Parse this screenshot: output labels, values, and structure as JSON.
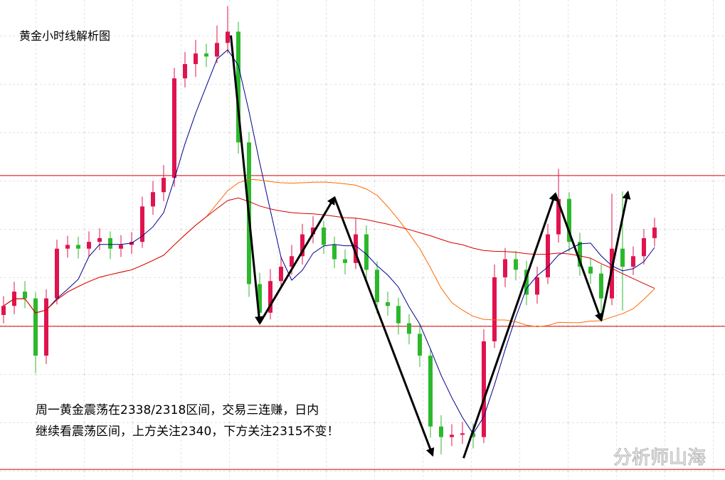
{
  "chart_data": {
    "type": "candlestick",
    "title": "黄金小时线解析图",
    "annotations": [
      "周一黄金震荡在2338/2318区间，交易三连赚，日内",
      "继续看震荡区间，上方关注2340，下方关注2315不变！"
    ],
    "watermark": "分析师山海",
    "ylim": [
      2297.6,
      2361.3
    ],
    "up_color": "#e0134f",
    "down_color": "#2cb82c",
    "levels": [
      2338,
      2318,
      2299
    ],
    "level_color": "#d40000",
    "ma_periods": [
      5,
      20,
      40
    ],
    "ma_colors": [
      "#00008b",
      "#ff6a00",
      "#d40000"
    ],
    "arrows": [
      [
        [
          21.3,
          2356.6
        ],
        [
          24,
          2318.4
        ]
      ],
      [
        [
          24,
          2318.4
        ],
        [
          31,
          2335.1
        ]
      ],
      [
        [
          31,
          2335.1
        ],
        [
          40.2,
          2300.9
        ]
      ],
      [
        [
          43.1,
          2300.5
        ],
        [
          51.7,
          2335.6
        ]
      ],
      [
        [
          51.7,
          2335.6
        ],
        [
          56,
          2318.8
        ]
      ],
      [
        [
          56,
          2318.8
        ],
        [
          58.5,
          2335.8
        ]
      ]
    ],
    "ohlc": [
      [
        2319.5,
        2322.0,
        2318.4,
        2320.7
      ],
      [
        2320.7,
        2323.9,
        2319.6,
        2322.6
      ],
      [
        2322.6,
        2324.0,
        2320.4,
        2321.7
      ],
      [
        2321.7,
        2322.5,
        2311.8,
        2314.1
      ],
      [
        2314.1,
        2322.9,
        2313.0,
        2321.7
      ],
      [
        2321.7,
        2329.5,
        2320.9,
        2328.3
      ],
      [
        2328.3,
        2330.0,
        2327.1,
        2328.8
      ],
      [
        2328.8,
        2329.9,
        2327.0,
        2328.3
      ],
      [
        2328.3,
        2330.6,
        2327.2,
        2329.2
      ],
      [
        2329.2,
        2331.0,
        2328.1,
        2329.7
      ],
      [
        2329.7,
        2330.6,
        2326.9,
        2328.3
      ],
      [
        2328.3,
        2330.1,
        2327.2,
        2328.8
      ],
      [
        2328.8,
        2330.5,
        2327.6,
        2329.2
      ],
      [
        2329.2,
        2335.2,
        2328.4,
        2333.9
      ],
      [
        2333.9,
        2337.3,
        2332.8,
        2335.8
      ],
      [
        2335.8,
        2339.4,
        2334.6,
        2337.7
      ],
      [
        2337.7,
        2352.3,
        2336.5,
        2350.9
      ],
      [
        2350.9,
        2354.4,
        2349.7,
        2352.8
      ],
      [
        2352.8,
        2356.0,
        2351.1,
        2354.2
      ],
      [
        2354.2,
        2355.5,
        2352.4,
        2353.8
      ],
      [
        2353.8,
        2357.9,
        2352.9,
        2355.6
      ],
      [
        2355.6,
        2360.5,
        2354.2,
        2357.1
      ],
      [
        2357.1,
        2358.4,
        2340.9,
        2342.4
      ],
      [
        2342.4,
        2343.8,
        2321.9,
        2323.6
      ],
      [
        2323.6,
        2325.1,
        2318.4,
        2319.8
      ],
      [
        2319.8,
        2325.6,
        2318.9,
        2324.0
      ],
      [
        2324.0,
        2327.3,
        2323.1,
        2325.9
      ],
      [
        2325.9,
        2328.8,
        2324.8,
        2327.3
      ],
      [
        2327.3,
        2331.6,
        2326.2,
        2330.2
      ],
      [
        2330.2,
        2332.6,
        2329.0,
        2331.1
      ],
      [
        2331.1,
        2332.0,
        2327.6,
        2328.8
      ],
      [
        2328.8,
        2329.9,
        2325.7,
        2326.9
      ],
      [
        2326.9,
        2328.2,
        2324.9,
        2326.4
      ],
      [
        2326.4,
        2332.3,
        2325.6,
        2330.2
      ],
      [
        2330.2,
        2331.4,
        2324.1,
        2325.5
      ],
      [
        2325.5,
        2326.6,
        2319.7,
        2321.2
      ],
      [
        2321.2,
        2322.6,
        2319.4,
        2320.7
      ],
      [
        2320.7,
        2321.8,
        2316.9,
        2318.4
      ],
      [
        2318.4,
        2319.6,
        2315.6,
        2317.0
      ],
      [
        2317.0,
        2318.3,
        2312.6,
        2314.1
      ],
      [
        2314.1,
        2315.0,
        2303.2,
        2304.7
      ],
      [
        2304.7,
        2306.2,
        2301.0,
        2303.3
      ],
      [
        2303.3,
        2305.0,
        2302.1,
        2303.6
      ],
      [
        2303.6,
        2305.3,
        2302.4,
        2303.8
      ],
      [
        2303.8,
        2305.1,
        2301.8,
        2303.3
      ],
      [
        2303.3,
        2317.6,
        2302.5,
        2316.0
      ],
      [
        2316.0,
        2326.2,
        2315.1,
        2324.5
      ],
      [
        2324.5,
        2328.4,
        2323.2,
        2326.9
      ],
      [
        2326.9,
        2328.0,
        2324.1,
        2325.5
      ],
      [
        2325.5,
        2326.7,
        2320.8,
        2322.2
      ],
      [
        2322.2,
        2325.9,
        2321.0,
        2324.5
      ],
      [
        2324.5,
        2331.6,
        2323.6,
        2330.2
      ],
      [
        2330.2,
        2338.9,
        2329.1,
        2334.9
      ],
      [
        2334.9,
        2335.8,
        2327.9,
        2329.2
      ],
      [
        2329.2,
        2330.4,
        2324.7,
        2325.9
      ],
      [
        2325.9,
        2327.1,
        2323.6,
        2325.0
      ],
      [
        2325.0,
        2326.2,
        2319.4,
        2321.7
      ],
      [
        2321.7,
        2335.6,
        2320.8,
        2328.3
      ],
      [
        2328.3,
        2335.9,
        2320.1,
        2325.9
      ],
      [
        2325.9,
        2328.6,
        2324.8,
        2327.3
      ],
      [
        2327.3,
        2330.9,
        2326.2,
        2329.7
      ],
      [
        2329.7,
        2332.4,
        2328.6,
        2331.1
      ]
    ]
  }
}
